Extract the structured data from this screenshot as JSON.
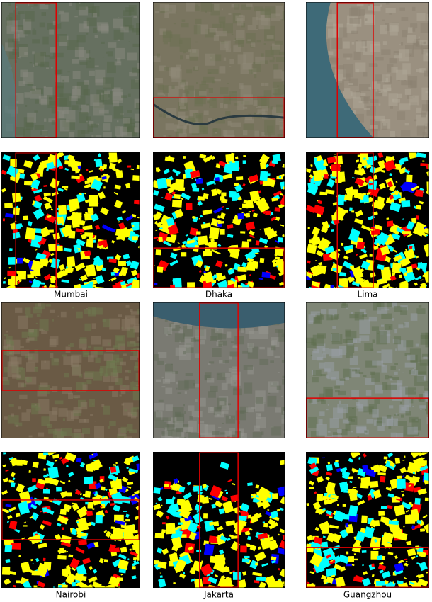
{
  "captions": [
    "Mumbai",
    "Dhaka",
    "Lima",
    "Nairobi",
    "Jakarta",
    "Guangzhou"
  ]
}
